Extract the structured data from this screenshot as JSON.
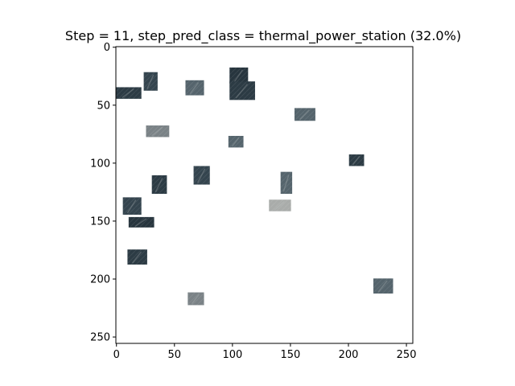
{
  "chart_data": {
    "type": "image",
    "title": "Step = 11, step_pred_class = thermal_power_station (32.0%)",
    "xlabel": "",
    "ylabel": "",
    "xlim": [
      -0.5,
      255.5
    ],
    "ylim": [
      255.5,
      -0.5
    ],
    "x_ticks": [
      0,
      50,
      100,
      150,
      200,
      250
    ],
    "y_ticks": [
      0,
      50,
      100,
      150,
      200,
      250
    ],
    "x_tick_labels": [
      "0",
      "50",
      "100",
      "150",
      "200",
      "250"
    ],
    "y_tick_labels": [
      "0",
      "50",
      "100",
      "150",
      "200",
      "250"
    ],
    "background_color": "#ffffff",
    "patch_colors": [
      "#2c3b44",
      "#34444e",
      "#3d4f5a",
      "#27353e",
      "#55646c",
      "#7a8286",
      "#a9acaa"
    ],
    "revealed_patches": [
      {
        "x": 0,
        "y": 35,
        "w": 22,
        "h": 10,
        "tone": 0
      },
      {
        "x": 24,
        "y": 22,
        "w": 12,
        "h": 16,
        "tone": 1
      },
      {
        "x": 60,
        "y": 29,
        "w": 16,
        "h": 13,
        "tone": 4
      },
      {
        "x": 98,
        "y": 18,
        "w": 16,
        "h": 14,
        "tone": 3
      },
      {
        "x": 98,
        "y": 30,
        "w": 22,
        "h": 16,
        "tone": 0
      },
      {
        "x": 154,
        "y": 53,
        "w": 18,
        "h": 11,
        "tone": 4
      },
      {
        "x": 26,
        "y": 68,
        "w": 20,
        "h": 10,
        "tone": 5
      },
      {
        "x": 97,
        "y": 77,
        "w": 13,
        "h": 10,
        "tone": 4
      },
      {
        "x": 201,
        "y": 93,
        "w": 13,
        "h": 10,
        "tone": 0
      },
      {
        "x": 67,
        "y": 103,
        "w": 14,
        "h": 16,
        "tone": 1
      },
      {
        "x": 31,
        "y": 111,
        "w": 13,
        "h": 16,
        "tone": 0
      },
      {
        "x": 142,
        "y": 108,
        "w": 10,
        "h": 19,
        "tone": 4
      },
      {
        "x": 6,
        "y": 130,
        "w": 16,
        "h": 15,
        "tone": 1
      },
      {
        "x": 132,
        "y": 132,
        "w": 19,
        "h": 10,
        "tone": 6
      },
      {
        "x": 11,
        "y": 147,
        "w": 22,
        "h": 9,
        "tone": 3
      },
      {
        "x": 10,
        "y": 175,
        "w": 17,
        "h": 13,
        "tone": 0
      },
      {
        "x": 222,
        "y": 200,
        "w": 17,
        "h": 13,
        "tone": 4
      },
      {
        "x": 62,
        "y": 212,
        "w": 14,
        "h": 11,
        "tone": 5
      }
    ]
  }
}
